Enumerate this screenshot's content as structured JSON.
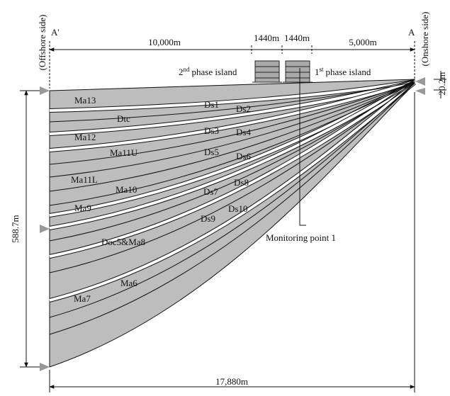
{
  "section_ends": {
    "left": "A'",
    "right": "A"
  },
  "sides": {
    "left": "(Offshore side)",
    "right": "(Onshore side)"
  },
  "dimensions": {
    "offshore_length": "10,000m",
    "island_2_width": "1440m",
    "island_1_width": "1440m",
    "onshore_length": "5,000m",
    "total_length": "17,880m",
    "depth": "588.7m",
    "height": "20.2m"
  },
  "island_2": {
    "ordinal": "2",
    "superscript": "nd",
    "text": "phase island"
  },
  "island_1": {
    "ordinal": "1",
    "superscript": "st",
    "text": "phase island"
  },
  "monitoring_point": "Monitoring point 1",
  "clay_layers": [
    "Ma13",
    "Dtc",
    "Ma12",
    "Ma11U",
    "Ma11L",
    "Ma10",
    "Ma9",
    "Doc5&Ma8",
    "Ma7",
    "Ma6"
  ],
  "sand_layers": [
    "Ds1",
    "Ds2",
    "Ds3",
    "Ds4",
    "Ds5",
    "Ds6",
    "Ds7",
    "Ds8",
    "Ds9",
    "Ds10"
  ]
}
